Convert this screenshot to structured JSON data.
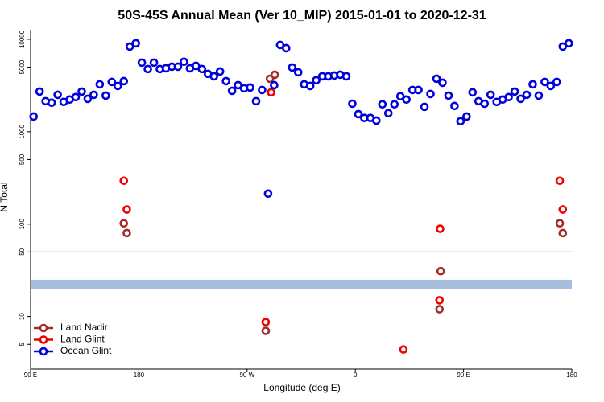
{
  "chart_data": {
    "type": "scatter",
    "title": "50S-45S Annual Mean (Ver 10_MIP)   2015-01-01 to 2020-12-31",
    "x_label": "Longitude (deg E)",
    "y_label": "N Total",
    "log_y": true,
    "legend": "lower left",
    "xlim": [
      90,
      540
    ],
    "xticks": [
      {
        "value": 90,
        "label": "90 E"
      },
      180,
      {
        "value": 270,
        "label": "90 W"
      },
      {
        "value": 360,
        "label": "0"
      },
      {
        "value": 450,
        "label": "90 E"
      },
      {
        "value": 540,
        "label": "180"
      }
    ],
    "ylim": [
      2.7,
      12700
    ],
    "yticks": [
      5,
      10,
      50,
      100,
      500,
      1000,
      5000,
      10000
    ],
    "hline": 50,
    "band": [
      20,
      25
    ],
    "band_color": "#a7bfdc",
    "series": [
      {
        "name": "Land Nadir",
        "color": "#a52a2a",
        "x": [
          167.5,
          170,
          289,
          293,
          285.5,
          431,
          430,
          530,
          532.5
        ],
        "values": [
          102,
          80,
          3740,
          4140,
          7,
          31,
          12,
          102,
          80
        ]
      },
      {
        "name": "Land Glint",
        "color": "#ee0000",
        "x": [
          167.5,
          170,
          290,
          285.5,
          400,
          430.5,
          430,
          530,
          532.5
        ],
        "values": [
          295,
          144,
          2670,
          8.7,
          4.4,
          89,
          15,
          295,
          144
        ]
      },
      {
        "name": "Ocean Glint",
        "color": "#0000dd",
        "x": [
          92.5,
          97.5,
          102.5,
          107.5,
          112.5,
          117.5,
          122.5,
          127.5,
          132.5,
          137.5,
          142.5,
          147.5,
          152.5,
          157.5,
          162.5,
          167.5,
          172.5,
          177.5,
          182.5,
          187.5,
          192.5,
          197.5,
          202.5,
          207.5,
          212.5,
          217.5,
          222.5,
          227.5,
          232.5,
          237.5,
          242.5,
          247.5,
          252.5,
          257.5,
          262.5,
          267.5,
          272.5,
          277.5,
          282.5,
          287.5,
          292.5,
          297.5,
          302.5,
          307.5,
          312.5,
          317.5,
          322.5,
          327.5,
          332.5,
          337.5,
          342.5,
          347.5,
          352.5,
          357.5,
          362.5,
          367.5,
          372.5,
          377.5,
          382.5,
          387.5,
          392.5,
          397.5,
          402.5,
          407.5,
          412.5,
          417.5,
          422.5,
          427.5,
          432.5,
          437.5,
          442.5,
          447.5,
          452.5,
          457.5,
          462.5,
          467.5,
          472.5,
          477.5,
          482.5,
          487.5,
          492.5,
          497.5,
          502.5,
          507.5,
          512.5,
          517.5,
          522.5,
          527.5,
          532.5,
          537.5
        ],
        "values": [
          1460,
          2720,
          2140,
          2060,
          2510,
          2100,
          2230,
          2370,
          2720,
          2270,
          2510,
          3260,
          2460,
          3460,
          3130,
          3530,
          8350,
          9060,
          5600,
          4770,
          5600,
          4770,
          4860,
          5060,
          5060,
          5720,
          4860,
          5160,
          4770,
          4230,
          3980,
          4490,
          3530,
          2770,
          3190,
          2950,
          3010,
          2140,
          2830,
          214,
          3190,
          8690,
          8020,
          4960,
          4400,
          3260,
          3130,
          3610,
          3980,
          3980,
          4060,
          4140,
          3980,
          2010,
          1550,
          1410,
          1410,
          1320,
          1980,
          1590,
          1980,
          2420,
          2230,
          2830,
          2830,
          1860,
          2560,
          3750,
          3390,
          2460,
          1900,
          1300,
          1460,
          2670,
          2140,
          2010,
          2510,
          2100,
          2230,
          2370,
          2720,
          2270,
          2510,
          3260,
          2460,
          3460,
          3130,
          3460,
          8350,
          9060
        ]
      }
    ]
  }
}
